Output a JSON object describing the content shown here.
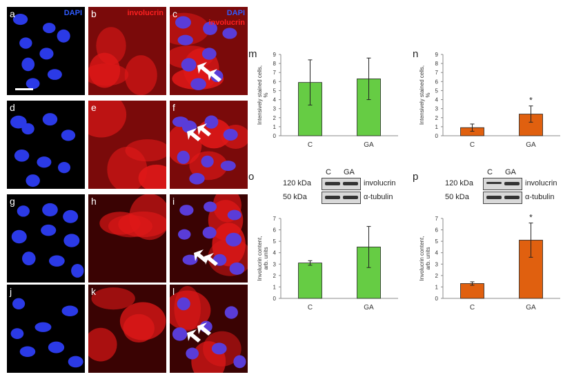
{
  "micrographs": [
    {
      "letter": "a",
      "kind": "dapi",
      "tag": "DAPI"
    },
    {
      "letter": "b",
      "kind": "inv",
      "tag": "involucrin"
    },
    {
      "letter": "c",
      "kind": "merge",
      "tag": "DAPI",
      "tag2": "involucrin"
    },
    {
      "letter": "d",
      "kind": "dapi"
    },
    {
      "letter": "e",
      "kind": "inv"
    },
    {
      "letter": "f",
      "kind": "merge"
    },
    {
      "letter": "g",
      "kind": "dapi"
    },
    {
      "letter": "h",
      "kind": "inv"
    },
    {
      "letter": "i",
      "kind": "merge"
    },
    {
      "letter": "j",
      "kind": "dapi"
    },
    {
      "letter": "k",
      "kind": "inv"
    },
    {
      "letter": "l",
      "kind": "merge"
    }
  ],
  "blots": [
    {
      "letter": "o",
      "lanes": [
        "C",
        "GA"
      ],
      "rows": [
        {
          "size": "120 kDa",
          "protein": "involucrin"
        },
        {
          "size": "50 kDa",
          "protein": "α-tubulin"
        }
      ]
    },
    {
      "letter": "p",
      "lanes": [
        "C",
        "GA"
      ],
      "rows": [
        {
          "size": "120 kDa",
          "protein": "involucrin"
        },
        {
          "size": "50 kDa",
          "protein": "α-tubulin"
        }
      ]
    }
  ],
  "chart_data": [
    {
      "letter": "m",
      "type": "bar",
      "categories": [
        "C",
        "GA"
      ],
      "values": [
        5.9,
        6.3
      ],
      "errors": [
        2.5,
        2.3
      ],
      "ylim": [
        0,
        9
      ],
      "yticks": [
        0,
        1,
        2,
        3,
        4,
        5,
        6,
        7,
        8,
        9
      ],
      "ylabel": "Intensively stained cells, %",
      "color": "#66cc44",
      "significance": [
        "",
        ""
      ]
    },
    {
      "letter": "n",
      "type": "bar",
      "categories": [
        "C",
        "GA"
      ],
      "values": [
        0.9,
        2.4
      ],
      "errors": [
        0.4,
        0.9
      ],
      "ylim": [
        0,
        9
      ],
      "yticks": [
        0,
        1,
        2,
        3,
        4,
        5,
        6,
        7,
        8,
        9
      ],
      "ylabel": "Intensively stained cells, %",
      "color": "#e0600f",
      "significance": [
        "",
        "*"
      ]
    },
    {
      "letter": "o",
      "type": "bar",
      "categories": [
        "C",
        "GA"
      ],
      "values": [
        3.1,
        4.5
      ],
      "errors": [
        0.2,
        1.8
      ],
      "ylim": [
        0,
        7
      ],
      "yticks": [
        0,
        1,
        2,
        3,
        4,
        5,
        6,
        7
      ],
      "ylabel": "Involucrin content, arb. units",
      "color": "#66cc44",
      "significance": [
        "",
        ""
      ]
    },
    {
      "letter": "p",
      "type": "bar",
      "categories": [
        "C",
        "GA"
      ],
      "values": [
        1.3,
        5.1
      ],
      "errors": [
        0.15,
        1.5
      ],
      "ylim": [
        0,
        7
      ],
      "yticks": [
        0,
        1,
        2,
        3,
        4,
        5,
        6,
        7
      ],
      "ylabel": "Involucrin content, arb. units",
      "color": "#e0600f",
      "significance": [
        "",
        "*"
      ]
    }
  ]
}
